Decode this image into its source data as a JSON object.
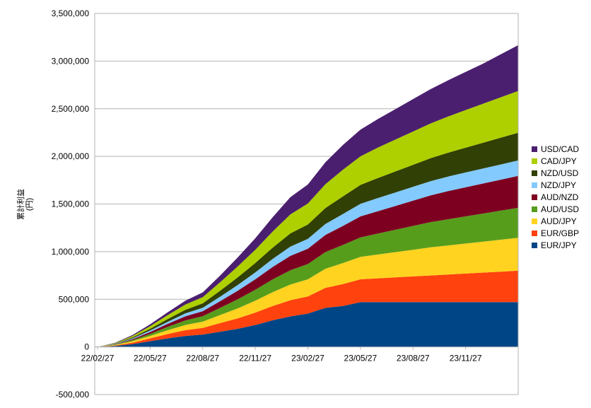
{
  "chart_data": {
    "type": "area",
    "stacked": true,
    "ylabel_line1": "累計利益",
    "ylabel_line2": "(円)",
    "ylim": [
      -500000,
      3500000
    ],
    "yticks": [
      -500000,
      0,
      500000,
      1000000,
      1500000,
      2000000,
      2500000,
      3000000,
      3500000
    ],
    "ytick_labels": [
      "-500,000",
      "0",
      "500,000",
      "1,000,000",
      "1,500,000",
      "2,000,000",
      "2,500,000",
      "3,000,000",
      "3,500,000"
    ],
    "xtick_labels": [
      "22/02/27",
      "22/05/27",
      "22/08/27",
      "22/11/27",
      "23/02/27",
      "23/05/27",
      "23/08/27",
      "23/11/27"
    ],
    "x": [
      "22/02/27",
      "22/03/27",
      "22/04/27",
      "22/05/27",
      "22/06/27",
      "22/07/27",
      "22/08/27",
      "22/09/27",
      "22/10/27",
      "22/11/27",
      "22/12/27",
      "23/01/27",
      "23/02/27",
      "23/03/27",
      "23/04/27",
      "23/05/27",
      "23/06/27",
      "23/07/27",
      "23/08/27",
      "23/09/27",
      "23/10/27",
      "23/11/27",
      "23/12/27",
      "24/01/27",
      "24/02/27"
    ],
    "grid": true,
    "legend_position": "right",
    "series": [
      {
        "name": "EUR/JPY",
        "color": "#004586",
        "values": [
          0,
          10000,
          30000,
          60000,
          90000,
          115000,
          130000,
          160000,
          190000,
          230000,
          280000,
          320000,
          350000,
          410000,
          430000,
          470000,
          470000,
          470000,
          470000,
          470000,
          470000,
          470000,
          470000,
          470000,
          470000
        ]
      },
      {
        "name": "EUR/GBP",
        "color": "#ff420e",
        "values": [
          0,
          5000,
          15000,
          30000,
          45000,
          60000,
          70000,
          90000,
          110000,
          130000,
          150000,
          170000,
          180000,
          210000,
          230000,
          240000,
          250000,
          260000,
          270000,
          280000,
          290000,
          300000,
          310000,
          320000,
          330000
        ]
      },
      {
        "name": "AUD/JPY",
        "color": "#ffd320",
        "values": [
          0,
          5000,
          15000,
          25000,
          40000,
          55000,
          65000,
          85000,
          105000,
          125000,
          145000,
          165000,
          180000,
          200000,
          220000,
          235000,
          250000,
          265000,
          280000,
          295000,
          305000,
          315000,
          325000,
          335000,
          345000
        ]
      },
      {
        "name": "AUD/USD",
        "color": "#579d1c",
        "values": [
          0,
          5000,
          12000,
          22000,
          35000,
          48000,
          58000,
          75000,
          95000,
          115000,
          135000,
          150000,
          160000,
          175000,
          190000,
          205000,
          220000,
          235000,
          250000,
          265000,
          275000,
          285000,
          295000,
          305000,
          315000
        ]
      },
      {
        "name": "AUD/NZD",
        "color": "#7e0021",
        "values": [
          0,
          3000,
          10000,
          20000,
          32000,
          43000,
          52000,
          70000,
          90000,
          110000,
          130000,
          150000,
          160000,
          180000,
          200000,
          220000,
          235000,
          250000,
          265000,
          280000,
          295000,
          305000,
          315000,
          325000,
          335000
        ]
      },
      {
        "name": "NZD/JPY",
        "color": "#83caff",
        "values": [
          0,
          3000,
          8000,
          15000,
          22000,
          30000,
          36000,
          48000,
          60000,
          72000,
          85000,
          98000,
          105000,
          115000,
          125000,
          132000,
          138000,
          142000,
          146000,
          150000,
          153000,
          156000,
          158000,
          160000,
          162000
        ]
      },
      {
        "name": "NZD/USD",
        "color": "#314004",
        "values": [
          0,
          4000,
          10000,
          18000,
          28000,
          38000,
          46000,
          62000,
          80000,
          98000,
          118000,
          138000,
          150000,
          168000,
          185000,
          198000,
          210000,
          220000,
          230000,
          240000,
          250000,
          260000,
          270000,
          280000,
          290000
        ]
      },
      {
        "name": "CAD/JPY",
        "color": "#aecf00",
        "values": [
          0,
          5000,
          15000,
          28000,
          42000,
          55000,
          65000,
          90000,
          115000,
          140000,
          170000,
          200000,
          220000,
          250000,
          280000,
          300000,
          320000,
          335000,
          350000,
          365000,
          380000,
          395000,
          410000,
          425000,
          440000
        ]
      },
      {
        "name": "USD/CAD",
        "color": "#4b1f6f",
        "values": [
          0,
          3000,
          10000,
          20000,
          30000,
          40000,
          50000,
          70000,
          95000,
          120000,
          150000,
          180000,
          200000,
          230000,
          260000,
          280000,
          300000,
          320000,
          340000,
          360000,
          380000,
          400000,
          420000,
          450000,
          480000
        ]
      }
    ]
  }
}
